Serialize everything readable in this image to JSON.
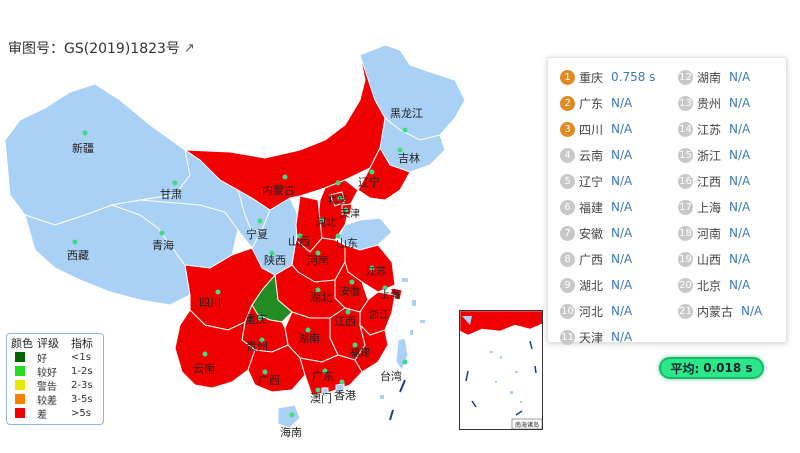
{
  "map": {
    "approval_label": "审图号：GS(2019)1823号",
    "external_icon": "external-link-icon",
    "colors": {
      "good": "#006400",
      "fairly_good": "#22dd22",
      "warning": "#e8e800",
      "poor": "#ff8000",
      "bad": "#f00000",
      "no_data": "#a9d0f5",
      "border": "#ffffff",
      "dot": "#3ddc84"
    },
    "labels": {
      "heilongjiang": "黑龙江",
      "jilin": "吉林",
      "liaoning": "辽宁",
      "xinjiang": "新疆",
      "neimenggu": "内蒙古",
      "gansu": "甘肃",
      "beijing": "北京",
      "tianjin": "天津",
      "hebei": "河北",
      "ningxia": "宁夏",
      "shanxi": "山西",
      "shandong": "山东",
      "qinghai": "青海",
      "shaanxi": "陕西",
      "henan": "河南",
      "jiangsu": "江苏",
      "xizang": "西藏",
      "sichuan": "四川",
      "hubei": "湖北",
      "anhui": "安徽",
      "shanghai": "上海",
      "chongqing": "重庆",
      "zhejiang": "浙江",
      "jiangxi": "江西",
      "hunan": "湖南",
      "guizhou": "贵州",
      "fujian": "福建",
      "yunnan": "云南",
      "guangxi": "广西",
      "guangdong": "广东",
      "taiwan": "台湾",
      "macau": "澳门",
      "hongkong": "香港",
      "hainan": "海南"
    },
    "inset_labels": [
      "南海诸岛"
    ]
  },
  "results": {
    "left": [
      {
        "rank": "1",
        "name": "重庆",
        "value": "0.758 s"
      },
      {
        "rank": "2",
        "name": "广东",
        "value": "N/A"
      },
      {
        "rank": "3",
        "name": "四川",
        "value": "N/A"
      },
      {
        "rank": "4",
        "name": "云南",
        "value": "N/A"
      },
      {
        "rank": "5",
        "name": "辽宁",
        "value": "N/A"
      },
      {
        "rank": "6",
        "name": "福建",
        "value": "N/A"
      },
      {
        "rank": "7",
        "name": "安徽",
        "value": "N/A"
      },
      {
        "rank": "8",
        "name": "广西",
        "value": "N/A"
      },
      {
        "rank": "9",
        "name": "湖北",
        "value": "N/A"
      },
      {
        "rank": "10",
        "name": "河北",
        "value": "N/A"
      },
      {
        "rank": "11",
        "name": "天津",
        "value": "N/A"
      }
    ],
    "right": [
      {
        "rank": "12",
        "name": "湖南",
        "value": "N/A"
      },
      {
        "rank": "13",
        "name": "贵州",
        "value": "N/A"
      },
      {
        "rank": "14",
        "name": "江苏",
        "value": "N/A"
      },
      {
        "rank": "15",
        "name": "浙江",
        "value": "N/A"
      },
      {
        "rank": "16",
        "name": "江西",
        "value": "N/A"
      },
      {
        "rank": "17",
        "name": "上海",
        "value": "N/A"
      },
      {
        "rank": "18",
        "name": "河南",
        "value": "N/A"
      },
      {
        "rank": "19",
        "name": "山西",
        "value": "N/A"
      },
      {
        "rank": "20",
        "name": "北京",
        "value": "N/A"
      },
      {
        "rank": "21",
        "name": "内蒙古",
        "value": "N/A"
      }
    ]
  },
  "average": {
    "label": "平均:",
    "value": "0.018 s"
  },
  "legend": {
    "headers": {
      "color": "颜色",
      "level": "评级",
      "metric": "指标"
    },
    "rows": [
      {
        "color": "#006400",
        "level": "好",
        "metric": "<1s"
      },
      {
        "color": "#22dd22",
        "level": "较好",
        "metric": "1-2s"
      },
      {
        "color": "#e8e800",
        "level": "警告",
        "metric": "2-3s"
      },
      {
        "color": "#ff8000",
        "level": "较差",
        "metric": "3-5s"
      },
      {
        "color": "#f00000",
        "level": "差",
        "metric": ">5s"
      }
    ]
  }
}
